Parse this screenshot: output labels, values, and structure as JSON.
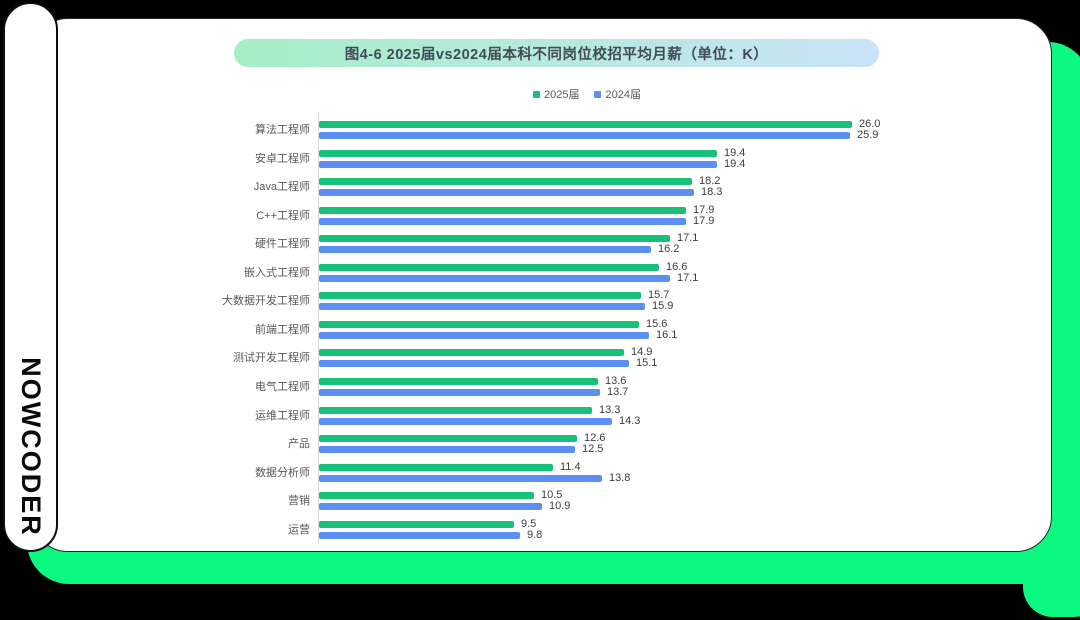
{
  "branding": {
    "logo_text": "NOWCODER"
  },
  "colors": {
    "background": "#000000",
    "card": "#ffffff",
    "neon_green": "#0bf980",
    "bar_green": "#17c17a",
    "bar_blue": "#5b90f2",
    "title_gradient_left": "#a6eec6",
    "title_gradient_right": "#c9e3f8",
    "title_text": "#3f4c55",
    "axis_line": "#d9d9d9"
  },
  "chart": {
    "title": "图4-6 2025届vs2024届本科不同岗位校招平均月薪（单位：K）"
  },
  "chart_data": {
    "type": "bar",
    "orientation": "horizontal",
    "title": "图4-6 2025届vs2024届本科不同岗位校招平均月薪（单位：K）",
    "value_unit": "K",
    "xlabel": "",
    "ylabel": "",
    "xlim": [
      0,
      27
    ],
    "grid": false,
    "legend_position": "top-center",
    "value_labels": true,
    "categories": [
      "算法工程师",
      "安卓工程师",
      "Java工程师",
      "C++工程师",
      "硬件工程师",
      "嵌入式工程师",
      "大数据开发工程师",
      "前端工程师",
      "测试开发工程师",
      "电气工程师",
      "运维工程师",
      "产品",
      "数据分析师",
      "营销",
      "运营"
    ],
    "series": [
      {
        "name": "2025届",
        "color": "#17c17a",
        "values": [
          26.0,
          19.4,
          18.2,
          17.9,
          17.1,
          16.6,
          15.7,
          15.6,
          14.9,
          13.6,
          13.3,
          12.6,
          11.4,
          10.5,
          9.5
        ]
      },
      {
        "name": "2024届",
        "color": "#5b90f2",
        "values": [
          25.9,
          19.4,
          18.3,
          17.9,
          16.2,
          17.1,
          15.9,
          16.1,
          15.1,
          13.7,
          14.3,
          12.5,
          13.8,
          10.9,
          9.8
        ]
      }
    ]
  }
}
